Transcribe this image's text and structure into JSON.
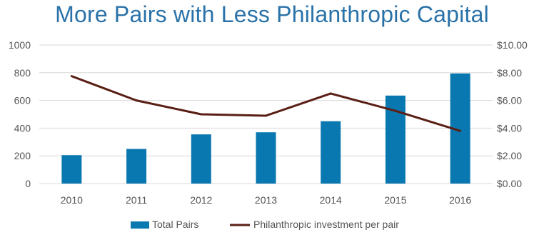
{
  "chart_data": {
    "type": "bar",
    "title": "More Pairs with Less Philanthropic Capital",
    "categories": [
      "2010",
      "2011",
      "2012",
      "2013",
      "2014",
      "2015",
      "2016"
    ],
    "series": [
      {
        "name": "Total Pairs",
        "type": "bar",
        "axis": "left",
        "color": "#0a78b0",
        "values": [
          205,
          250,
          355,
          370,
          450,
          635,
          795
        ]
      },
      {
        "name": "Philanthropic investment per pair",
        "type": "line",
        "axis": "right",
        "color": "#5a1f14",
        "values": [
          7.75,
          6.0,
          5.0,
          4.9,
          6.5,
          5.25,
          3.8
        ]
      }
    ],
    "y_left": {
      "min": 0,
      "max": 1000,
      "ticks": [
        "0",
        "200",
        "400",
        "600",
        "800",
        "1000"
      ]
    },
    "y_right": {
      "min": 0,
      "max": 10,
      "ticks": [
        "$0.00",
        "$2.00",
        "$4.00",
        "$6.00",
        "$8.00",
        "$10.00"
      ]
    },
    "grid": true,
    "legend_position": "bottom"
  }
}
